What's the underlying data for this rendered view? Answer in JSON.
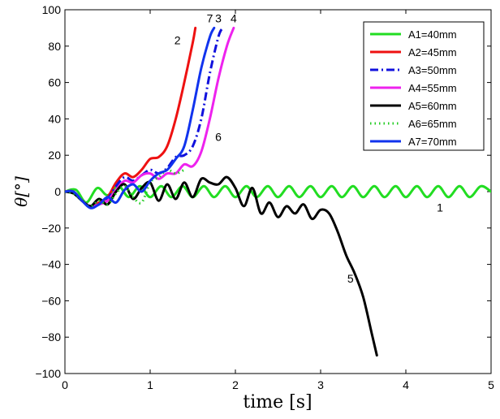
{
  "chart_data": {
    "type": "line",
    "title": "",
    "xlabel": "time [s]",
    "ylabel": "θ[°]",
    "xlim": [
      0,
      5
    ],
    "ylim": [
      -100,
      100
    ],
    "xticks": [
      "0",
      "1",
      "2",
      "3",
      "4",
      "5"
    ],
    "yticks": [
      "100",
      "80",
      "60",
      "40",
      "20",
      "0",
      "−20",
      "−40",
      "−60",
      "−80",
      "−100"
    ],
    "grid": false,
    "legend_position": "top-right",
    "series": [
      {
        "name": "A1=40mm",
        "color": "#22dd22",
        "dash": "solid",
        "x": [
          0,
          0.13,
          0.25,
          0.38,
          0.5,
          0.63,
          0.75,
          0.88,
          1.0,
          1.13,
          1.25,
          1.38,
          1.5,
          1.63,
          1.75,
          1.88,
          2.0,
          2.13,
          2.25,
          2.38,
          2.5,
          2.63,
          2.75,
          2.88,
          3.0,
          3.13,
          3.25,
          3.38,
          3.5,
          3.63,
          3.75,
          3.88,
          4.0,
          4.13,
          4.25,
          4.38,
          4.5,
          4.63,
          4.75,
          4.88,
          5.0
        ],
        "y": [
          0,
          1,
          -6,
          2,
          -2,
          3,
          -3,
          3,
          -3,
          3,
          -3,
          3,
          -3,
          3,
          -3,
          3,
          -3,
          3,
          -3,
          3,
          -3,
          3,
          -3,
          3,
          -3,
          3,
          -3,
          3,
          -3,
          3,
          -3,
          3,
          -3,
          3,
          -3,
          3,
          -3,
          3,
          -3,
          3,
          0
        ]
      },
      {
        "name": "A2=45mm",
        "color": "#ee1111",
        "dash": "solid",
        "x": [
          0,
          0.1,
          0.2,
          0.3,
          0.4,
          0.5,
          0.6,
          0.7,
          0.8,
          0.9,
          1.0,
          1.1,
          1.2,
          1.3,
          1.4,
          1.5,
          1.53
        ],
        "y": [
          0,
          0,
          -5,
          -8,
          -6,
          -3,
          5,
          10,
          8,
          12,
          18,
          19,
          25,
          40,
          60,
          82,
          90
        ]
      },
      {
        "name": "A3=50mm",
        "color": "#1111dd",
        "dash": "dashdot",
        "x": [
          0,
          0.1,
          0.2,
          0.3,
          0.4,
          0.5,
          0.6,
          0.7,
          0.8,
          0.9,
          1.0,
          1.1,
          1.2,
          1.3,
          1.4,
          1.5,
          1.6,
          1.7,
          1.8,
          1.85
        ],
        "y": [
          0,
          0,
          -5,
          -8,
          -7,
          -4,
          3,
          8,
          6,
          9,
          12,
          10,
          13,
          19,
          20,
          25,
          40,
          65,
          85,
          90
        ]
      },
      {
        "name": "A4=55mm",
        "color": "#ee22ee",
        "dash": "solid",
        "x": [
          0,
          0.1,
          0.2,
          0.3,
          0.4,
          0.5,
          0.6,
          0.7,
          0.8,
          0.9,
          1.0,
          1.1,
          1.2,
          1.3,
          1.4,
          1.5,
          1.6,
          1.7,
          1.8,
          1.9,
          1.98
        ],
        "y": [
          0,
          0,
          -5,
          -8,
          -7,
          -5,
          1,
          6,
          5,
          9,
          10,
          7,
          10,
          10,
          15,
          14,
          22,
          40,
          62,
          80,
          90
        ]
      },
      {
        "name": "A5=60mm",
        "color": "#000000",
        "dash": "solid",
        "x": [
          0,
          0.1,
          0.2,
          0.3,
          0.4,
          0.5,
          0.6,
          0.7,
          0.8,
          0.9,
          1.0,
          1.1,
          1.2,
          1.3,
          1.4,
          1.5,
          1.6,
          1.7,
          1.8,
          1.9,
          2.0,
          2.1,
          2.2,
          2.3,
          2.4,
          2.5,
          2.6,
          2.7,
          2.8,
          2.9,
          3.0,
          3.1,
          3.2,
          3.3,
          3.4,
          3.5,
          3.6,
          3.66
        ],
        "y": [
          0,
          -1,
          -5,
          -8,
          -4,
          -7,
          0,
          4,
          -4,
          2,
          5,
          -5,
          4,
          -4,
          5,
          -3,
          7,
          5,
          4,
          8,
          2,
          -8,
          2,
          -12,
          -6,
          -14,
          -8,
          -12,
          -7,
          -15,
          -10,
          -12,
          -22,
          -35,
          -45,
          -58,
          -78,
          -90
        ]
      },
      {
        "name": "A6=65mm",
        "color": "#22cc22",
        "dash": "dotted",
        "x": [
          0,
          0.1,
          0.2,
          0.3,
          0.4,
          0.5,
          0.6,
          0.7,
          0.8,
          0.9,
          1.0,
          1.1,
          1.2,
          1.3,
          1.4
        ],
        "y": [
          0,
          -1,
          -5,
          -8,
          -5,
          -7,
          -1,
          3,
          -3,
          -6,
          5,
          8,
          12,
          10,
          12
        ]
      },
      {
        "name": "A7=70mm",
        "color": "#1133ee",
        "dash": "solid",
        "x": [
          0,
          0.1,
          0.2,
          0.3,
          0.4,
          0.5,
          0.6,
          0.7,
          0.8,
          0.9,
          1.0,
          1.1,
          1.2,
          1.3,
          1.4,
          1.5,
          1.6,
          1.7,
          1.75
        ],
        "y": [
          0,
          0,
          -5,
          -9,
          -7,
          -3,
          -6,
          1,
          4,
          0,
          6,
          10,
          12,
          18,
          25,
          45,
          68,
          85,
          90
        ]
      }
    ],
    "annotations": [
      {
        "text": "1",
        "x": 4.4,
        "y": -11
      },
      {
        "text": "2",
        "x": 1.32,
        "y": 81
      },
      {
        "text": "7",
        "x": 1.7,
        "y": 93
      },
      {
        "text": "3",
        "x": 1.8,
        "y": 93
      },
      {
        "text": "4",
        "x": 1.98,
        "y": 93
      },
      {
        "text": "6",
        "x": 1.8,
        "y": 28
      },
      {
        "text": "5",
        "x": 3.35,
        "y": -50
      }
    ]
  }
}
